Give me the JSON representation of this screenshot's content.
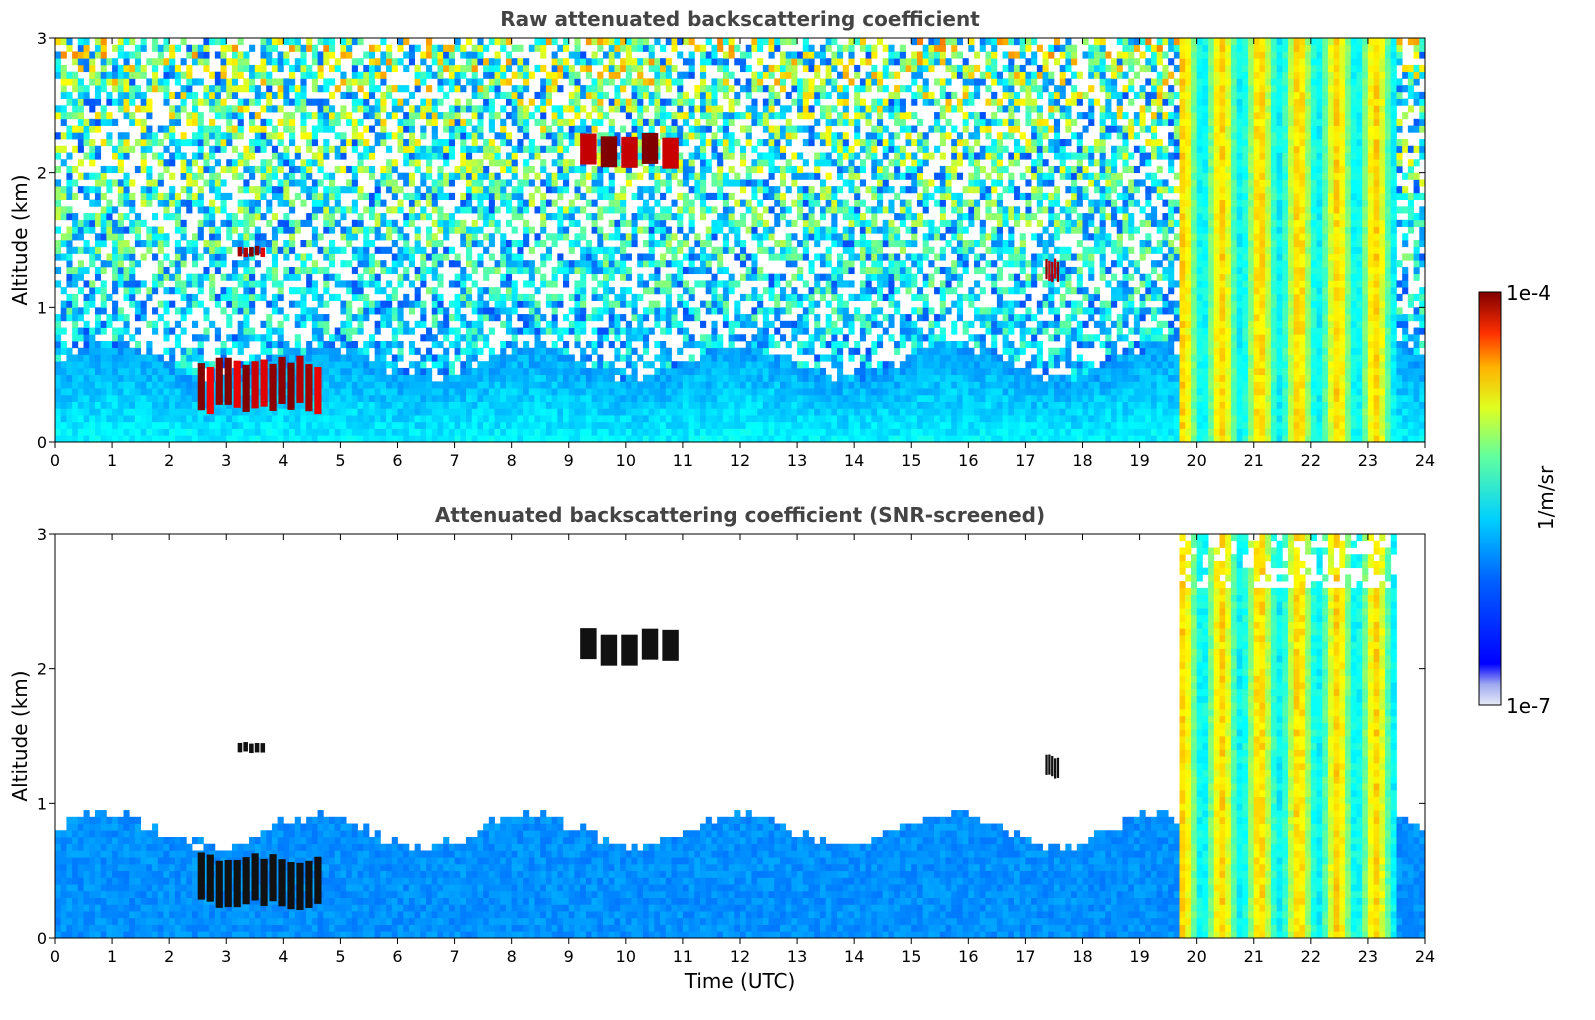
{
  "chart_data": [
    {
      "type": "heatmap",
      "title": "Raw attenuated backscattering coefficient",
      "xlabel": "",
      "ylabel": "Altitude (km)",
      "xlim": [
        0,
        24
      ],
      "ylim": [
        0,
        3
      ],
      "xticks": [
        "0",
        "1",
        "2",
        "3",
        "4",
        "5",
        "6",
        "7",
        "8",
        "9",
        "10",
        "11",
        "12",
        "13",
        "14",
        "15",
        "16",
        "17",
        "18",
        "19",
        "20",
        "21",
        "22",
        "23",
        "24"
      ],
      "yticks": [
        "0",
        "1",
        "2",
        "3"
      ],
      "features": [
        {
          "name": "boundary-layer",
          "x": [
            0,
            24
          ],
          "top_km": 0.6,
          "log_level": -5.9
        },
        {
          "name": "cloud-layer",
          "x": [
            2.5,
            4.7
          ],
          "y": [
            0.25,
            0.6
          ],
          "log_level": -4.1
        },
        {
          "name": "cloud-patch",
          "x": [
            3.2,
            3.7
          ],
          "y": [
            1.38,
            1.45
          ],
          "log_level": -4.1
        },
        {
          "name": "cloud-patch",
          "x": [
            9.2,
            11.0
          ],
          "y": [
            2.05,
            2.28
          ],
          "log_level": -4.1
        },
        {
          "name": "cloud-patch",
          "x": [
            17.35,
            17.6
          ],
          "y": [
            1.2,
            1.35
          ],
          "log_level": -4.1
        },
        {
          "name": "precipitation-columns",
          "x": [
            19.7,
            23.5
          ],
          "y": [
            0,
            3
          ],
          "log_level": -5.3
        }
      ]
    },
    {
      "type": "heatmap",
      "title": "Attenuated backscattering coefficient (SNR-screened)",
      "xlabel": "Time (UTC)",
      "ylabel": "Altitude (km)",
      "xlim": [
        0,
        24
      ],
      "ylim": [
        0,
        3
      ],
      "xticks": [
        "0",
        "1",
        "2",
        "3",
        "4",
        "5",
        "6",
        "7",
        "8",
        "9",
        "10",
        "11",
        "12",
        "13",
        "14",
        "15",
        "16",
        "17",
        "18",
        "19",
        "20",
        "21",
        "22",
        "23",
        "24"
      ],
      "yticks": [
        "0",
        "1",
        "2",
        "3"
      ],
      "features": [
        {
          "name": "boundary-layer",
          "x": [
            0,
            24
          ],
          "top_km": 0.8,
          "log_level": -6.2
        },
        {
          "name": "cloud-layer",
          "x": [
            2.5,
            4.7
          ],
          "y": [
            0.25,
            0.6
          ],
          "log_level": -4.0
        },
        {
          "name": "cloud-patch",
          "x": [
            3.2,
            3.7
          ],
          "y": [
            1.38,
            1.45
          ],
          "log_level": -4.0
        },
        {
          "name": "cloud-patch",
          "x": [
            9.2,
            11.0
          ],
          "y": [
            2.05,
            2.28
          ],
          "log_level": -4.0
        },
        {
          "name": "cloud-patch",
          "x": [
            17.35,
            17.6
          ],
          "y": [
            1.2,
            1.35
          ],
          "log_level": -4.0
        },
        {
          "name": "precipitation-columns",
          "x": [
            19.7,
            23.5
          ],
          "y": [
            0,
            3
          ],
          "log_level": -5.3
        }
      ]
    }
  ],
  "colorbar": {
    "label": "1/m/sr",
    "max_label": "1e-4",
    "min_label": "1e-7",
    "range": [
      1e-07,
      0.0001
    ],
    "scale": "log",
    "colormap": "jet"
  }
}
